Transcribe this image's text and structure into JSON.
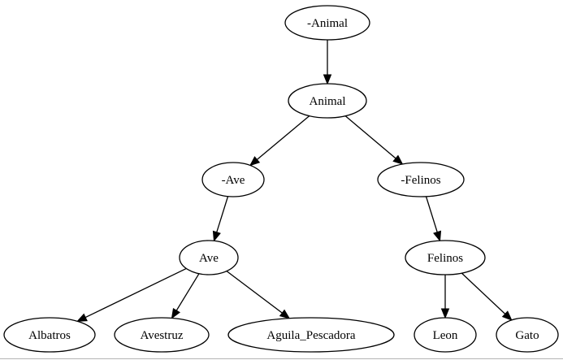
{
  "diagram": {
    "type": "directed-tree",
    "nodes": [
      {
        "id": "n_animal_neg",
        "label": "-Animal"
      },
      {
        "id": "n_animal",
        "label": "Animal"
      },
      {
        "id": "n_ave_neg",
        "label": "-Ave"
      },
      {
        "id": "n_felinos_neg",
        "label": "-Felinos"
      },
      {
        "id": "n_ave",
        "label": "Ave"
      },
      {
        "id": "n_felinos",
        "label": "Felinos"
      },
      {
        "id": "n_albatros",
        "label": "Albatros"
      },
      {
        "id": "n_avestruz",
        "label": "Avestruz"
      },
      {
        "id": "n_aguila",
        "label": "Aguila_Pescadora"
      },
      {
        "id": "n_leon",
        "label": "Leon"
      },
      {
        "id": "n_gato",
        "label": "Gato"
      }
    ],
    "edges": [
      {
        "from": "n_animal_neg",
        "to": "n_animal"
      },
      {
        "from": "n_animal",
        "to": "n_ave_neg"
      },
      {
        "from": "n_animal",
        "to": "n_felinos_neg"
      },
      {
        "from": "n_ave_neg",
        "to": "n_ave"
      },
      {
        "from": "n_felinos_neg",
        "to": "n_felinos"
      },
      {
        "from": "n_ave",
        "to": "n_albatros"
      },
      {
        "from": "n_ave",
        "to": "n_avestruz"
      },
      {
        "from": "n_ave",
        "to": "n_aguila"
      },
      {
        "from": "n_felinos",
        "to": "n_leon"
      },
      {
        "from": "n_felinos",
        "to": "n_gato"
      }
    ]
  }
}
